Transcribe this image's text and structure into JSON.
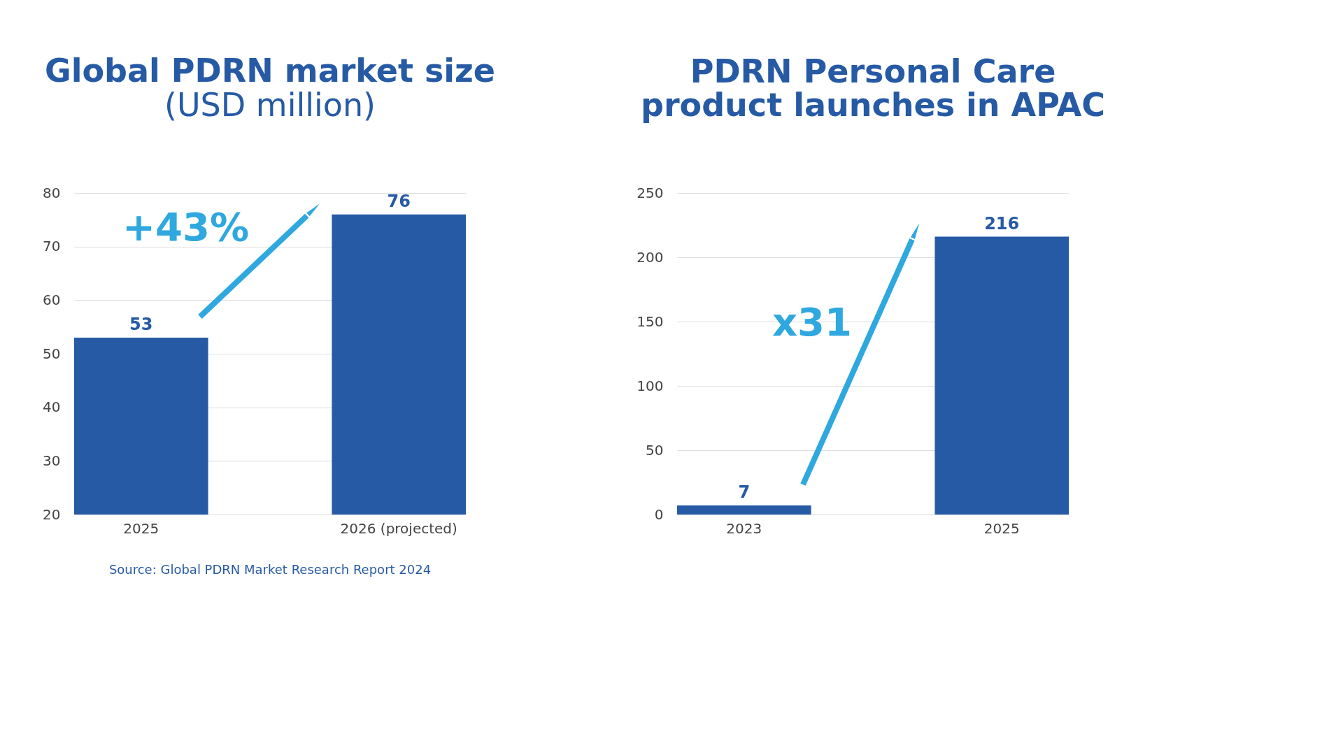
{
  "chart_data": [
    {
      "type": "bar",
      "title": "Global PDRN market size",
      "subtitle": "(USD million)",
      "categories": [
        "2025",
        "2026 (projected)"
      ],
      "values": [
        53,
        76
      ],
      "color": "#265aa5",
      "ylim": [
        20,
        80
      ],
      "yticks": [
        20,
        30,
        40,
        50,
        60,
        70,
        80
      ],
      "grid": "y",
      "data_labels": true,
      "annotations": [
        "+43%",
        "Source: Global PDRN Market Research Report 2024"
      ]
    },
    {
      "type": "bar",
      "title": "PDRN Personal Care\nproduct launches in APAC",
      "categories": [
        "2023",
        "2025"
      ],
      "values": [
        7,
        216
      ],
      "color": "#265aa5",
      "ylim": [
        0,
        250
      ],
      "yticks": [
        0,
        50,
        100,
        150,
        200,
        250
      ],
      "grid": "y",
      "data_labels": true,
      "annotations": [
        "x31"
      ]
    }
  ]
}
